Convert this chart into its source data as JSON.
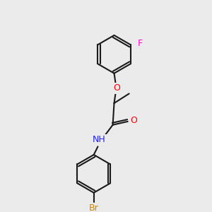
{
  "background_color": "#ebebeb",
  "bond_color": "#1a1a1a",
  "bond_lw": 1.5,
  "atom_colors": {
    "O": "#ff0000",
    "N": "#2020ff",
    "F": "#ff00cc",
    "Br": "#cc8800",
    "C": "#1a1a1a",
    "H": "#1a1a1a"
  },
  "font_size": 9,
  "font_size_small": 8
}
